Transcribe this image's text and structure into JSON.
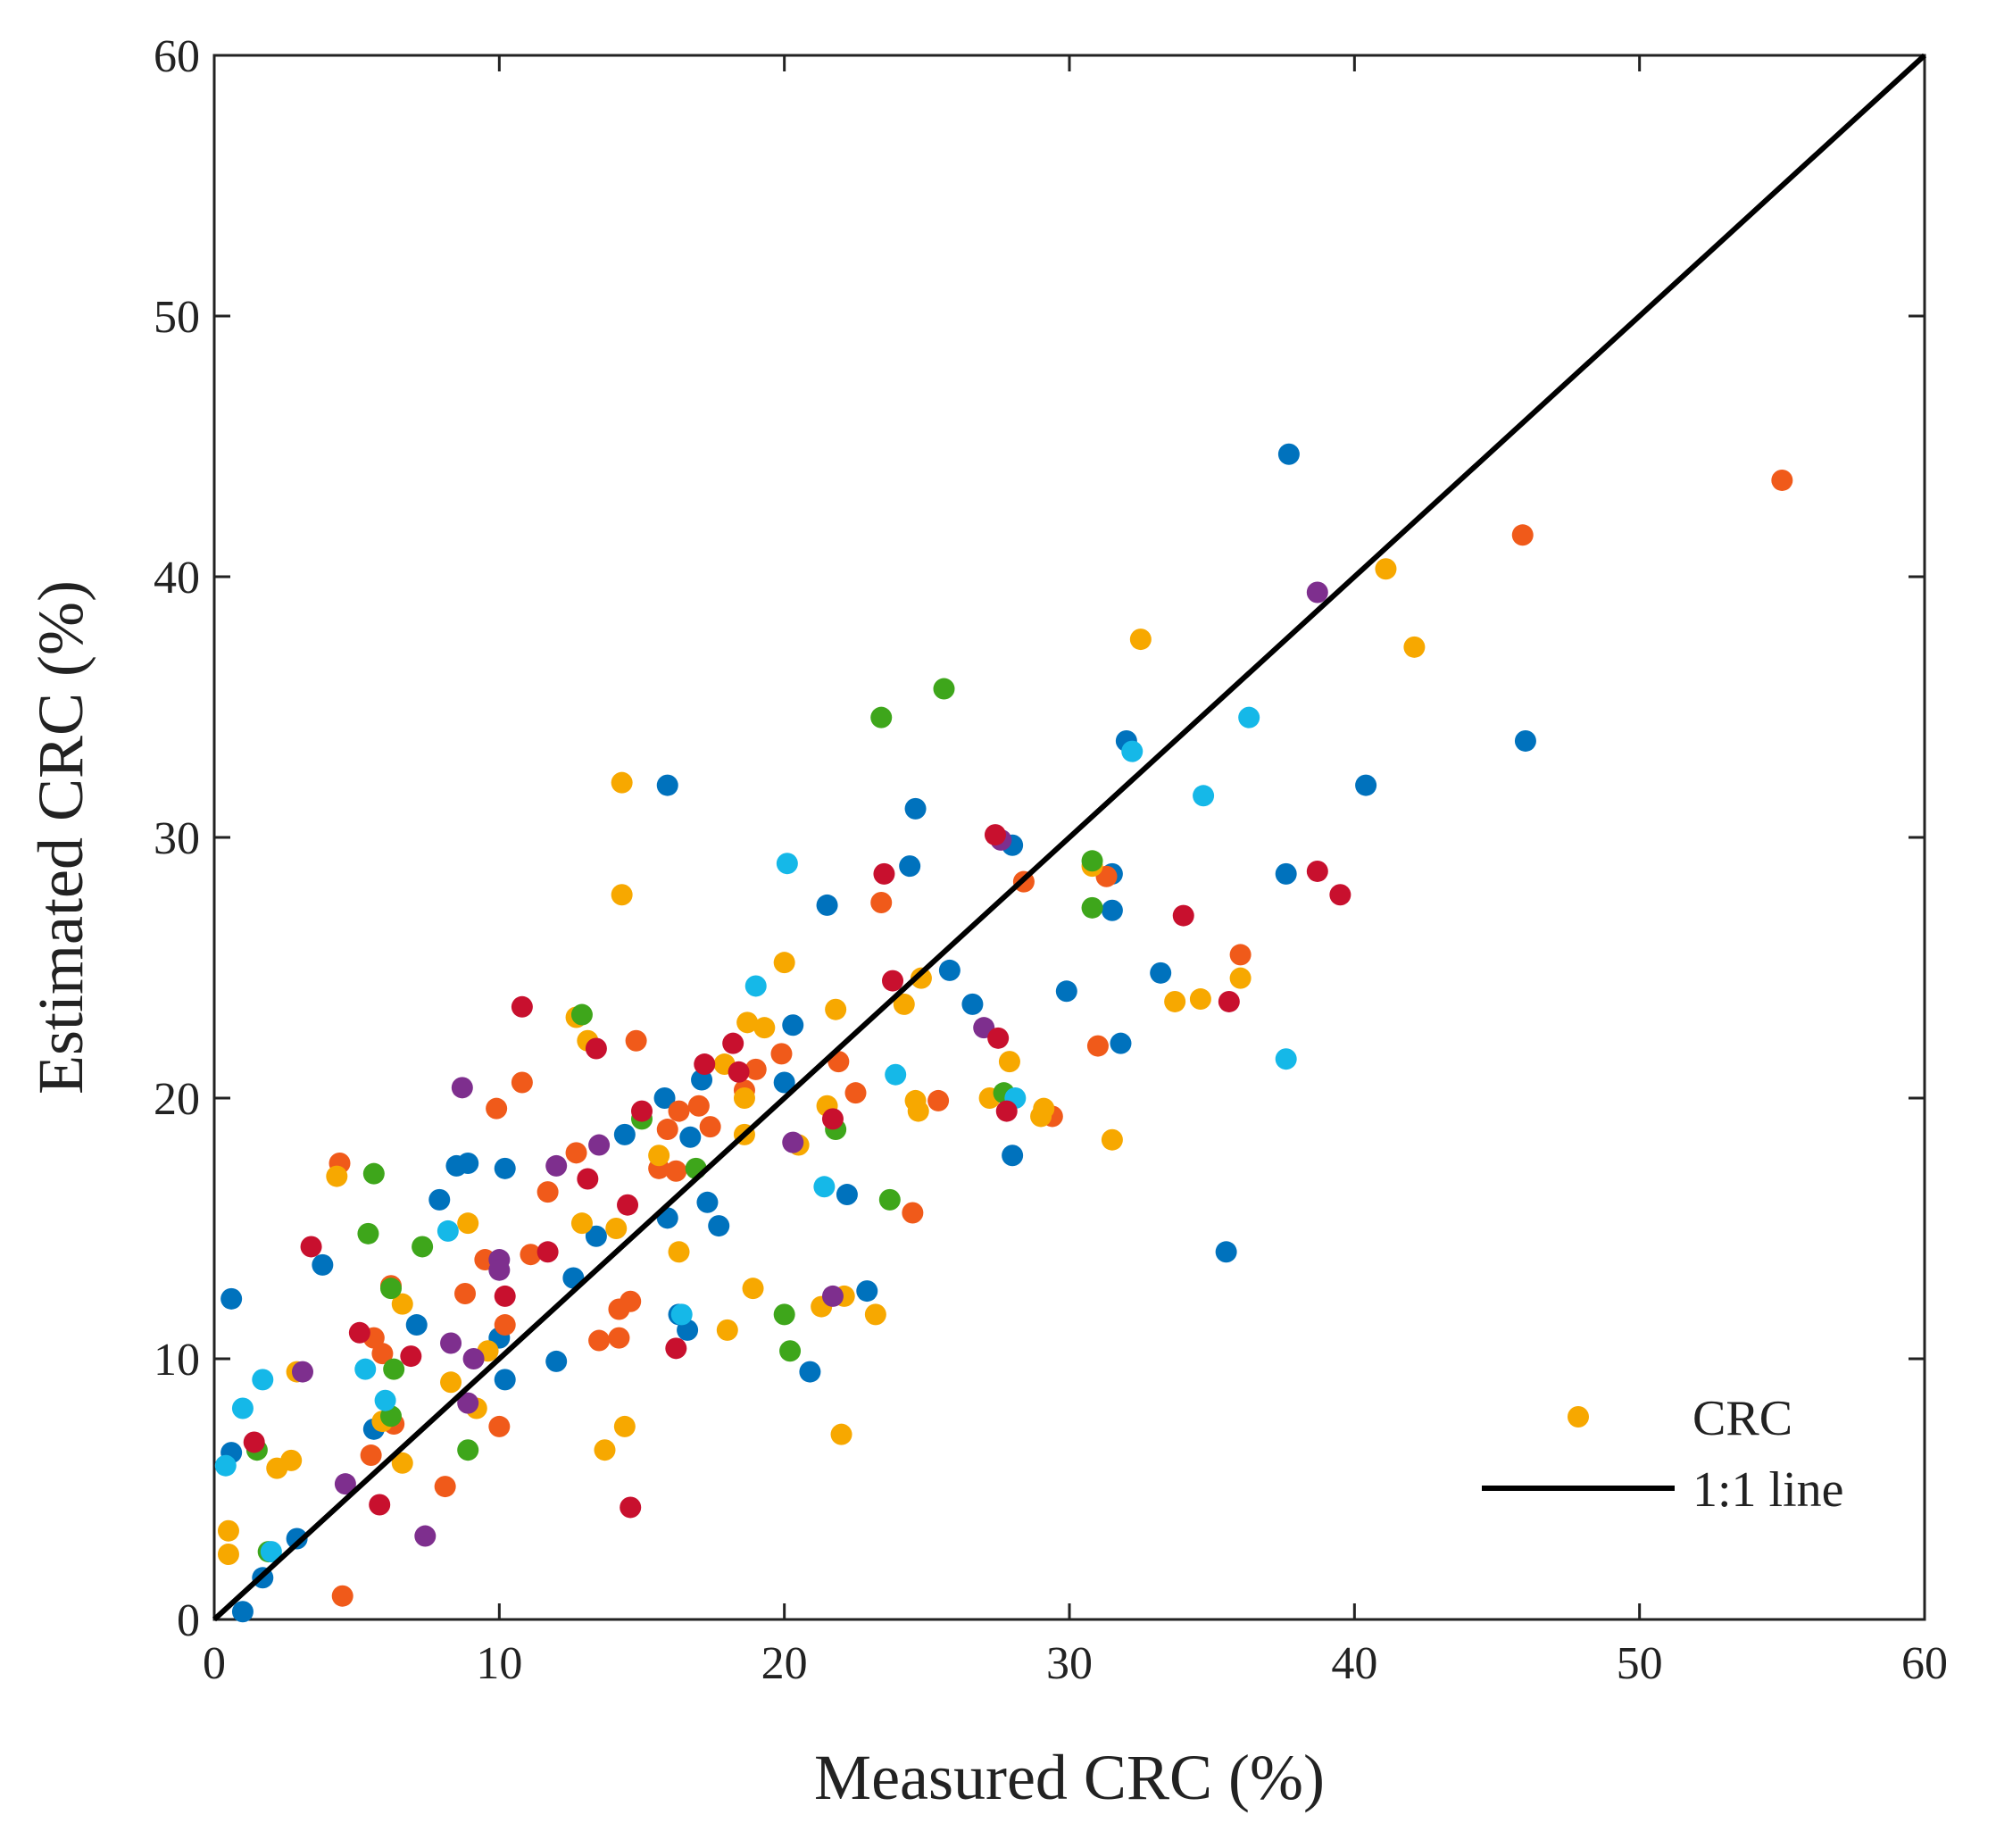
{
  "chart_data": {
    "type": "scatter",
    "title": "",
    "xlabel": "Measured CRC (%)",
    "ylabel": "Estimated CRC (%)",
    "xlim": [
      0,
      60
    ],
    "ylim": [
      0,
      60
    ],
    "xticks": [
      "0",
      "10",
      "20",
      "30",
      "40",
      "50",
      "60"
    ],
    "yticks": [
      "0",
      "10",
      "20",
      "30",
      "40",
      "50",
      "60"
    ],
    "grid": false,
    "legend": {
      "position": "bottom-right",
      "entries": [
        {
          "label": "CRC",
          "kind": "marker",
          "color": "#F7A800"
        },
        {
          "label": "1:1 line",
          "kind": "line",
          "color": "#000000"
        }
      ]
    },
    "reference_line": {
      "name": "1:1 line",
      "from": [
        0,
        0
      ],
      "to": [
        60,
        60
      ],
      "color": "#000000"
    },
    "series": [
      {
        "name": "blue",
        "color": "#0072BD",
        "points": [
          [
            0.6,
            12.3
          ],
          [
            0.6,
            6.4
          ],
          [
            1.0,
            0.3
          ],
          [
            1.7,
            1.6
          ],
          [
            2.9,
            3.1
          ],
          [
            3.8,
            13.6
          ],
          [
            5.6,
            7.3
          ],
          [
            7.1,
            11.3
          ],
          [
            7.9,
            16.1
          ],
          [
            8.5,
            17.4
          ],
          [
            8.9,
            17.5
          ],
          [
            10.2,
            17.3
          ],
          [
            10.2,
            9.2
          ],
          [
            10.0,
            10.8
          ],
          [
            12.0,
            9.9
          ],
          [
            12.6,
            13.1
          ],
          [
            13.4,
            14.7
          ],
          [
            14.4,
            18.6
          ],
          [
            15.8,
            20.0
          ],
          [
            15.9,
            32.0
          ],
          [
            15.9,
            15.4
          ],
          [
            16.3,
            11.7
          ],
          [
            16.6,
            11.1
          ],
          [
            16.7,
            18.5
          ],
          [
            17.1,
            20.7
          ],
          [
            17.3,
            16.0
          ],
          [
            17.7,
            15.1
          ],
          [
            20.0,
            20.6
          ],
          [
            20.3,
            22.8
          ],
          [
            20.9,
            9.5
          ],
          [
            21.5,
            27.4
          ],
          [
            22.2,
            16.3
          ],
          [
            22.9,
            12.6
          ],
          [
            24.4,
            28.9
          ],
          [
            24.6,
            31.1
          ],
          [
            25.8,
            24.9
          ],
          [
            26.6,
            23.6
          ],
          [
            28.0,
            29.7
          ],
          [
            28.0,
            17.8
          ],
          [
            29.9,
            24.1
          ],
          [
            31.5,
            28.6
          ],
          [
            31.5,
            27.2
          ],
          [
            31.8,
            22.1
          ],
          [
            32.0,
            33.7
          ],
          [
            33.2,
            24.8
          ],
          [
            35.5,
            14.1
          ],
          [
            37.6,
            28.6
          ],
          [
            37.7,
            44.7
          ],
          [
            40.4,
            32.0
          ],
          [
            46.0,
            33.7
          ]
        ]
      },
      {
        "name": "orange",
        "color": "#F05A1A",
        "points": [
          [
            4.4,
            17.5
          ],
          [
            4.5,
            0.9
          ],
          [
            5.6,
            10.8
          ],
          [
            5.9,
            10.2
          ],
          [
            6.2,
            12.8
          ],
          [
            6.3,
            7.5
          ],
          [
            5.5,
            6.3
          ],
          [
            8.1,
            5.1
          ],
          [
            8.8,
            12.5
          ],
          [
            9.5,
            13.8
          ],
          [
            9.9,
            19.6
          ],
          [
            10.0,
            7.4
          ],
          [
            10.2,
            11.3
          ],
          [
            10.8,
            20.6
          ],
          [
            11.1,
            14.0
          ],
          [
            11.7,
            16.4
          ],
          [
            12.7,
            17.9
          ],
          [
            13.5,
            10.7
          ],
          [
            14.2,
            10.8
          ],
          [
            14.2,
            11.9
          ],
          [
            14.6,
            12.2
          ],
          [
            14.8,
            22.2
          ],
          [
            15.6,
            17.3
          ],
          [
            15.9,
            18.8
          ],
          [
            16.2,
            17.2
          ],
          [
            16.3,
            19.5
          ],
          [
            17.0,
            19.7
          ],
          [
            17.4,
            18.9
          ],
          [
            18.6,
            20.3
          ],
          [
            19.0,
            21.1
          ],
          [
            19.9,
            21.7
          ],
          [
            21.9,
            21.4
          ],
          [
            22.5,
            20.2
          ],
          [
            23.4,
            27.5
          ],
          [
            24.5,
            15.6
          ],
          [
            25.4,
            19.9
          ],
          [
            28.4,
            28.3
          ],
          [
            29.4,
            19.3
          ],
          [
            31.0,
            22.0
          ],
          [
            31.3,
            28.5
          ],
          [
            36.0,
            25.5
          ],
          [
            45.9,
            41.6
          ],
          [
            55.0,
            43.7
          ]
        ]
      },
      {
        "name": "yellow",
        "color": "#F7A800",
        "points": [
          [
            0.5,
            3.4
          ],
          [
            0.5,
            2.5
          ],
          [
            2.2,
            5.8
          ],
          [
            2.7,
            6.1
          ],
          [
            2.9,
            9.5
          ],
          [
            4.3,
            17.0
          ],
          [
            5.9,
            7.6
          ],
          [
            6.6,
            12.1
          ],
          [
            6.6,
            6.0
          ],
          [
            8.3,
            9.1
          ],
          [
            8.9,
            15.2
          ],
          [
            9.2,
            8.1
          ],
          [
            9.6,
            10.3
          ],
          [
            12.7,
            23.1
          ],
          [
            12.9,
            15.2
          ],
          [
            13.1,
            22.2
          ],
          [
            13.7,
            6.5
          ],
          [
            14.1,
            15.0
          ],
          [
            14.3,
            32.1
          ],
          [
            14.3,
            27.8
          ],
          [
            14.4,
            7.4
          ],
          [
            15.6,
            17.8
          ],
          [
            16.3,
            14.1
          ],
          [
            17.9,
            21.3
          ],
          [
            18.0,
            11.1
          ],
          [
            18.6,
            20.0
          ],
          [
            18.6,
            18.6
          ],
          [
            18.7,
            22.9
          ],
          [
            18.9,
            12.7
          ],
          [
            19.3,
            22.7
          ],
          [
            20.0,
            25.2
          ],
          [
            20.5,
            18.2
          ],
          [
            21.3,
            12.0
          ],
          [
            21.5,
            19.7
          ],
          [
            21.8,
            23.4
          ],
          [
            22.0,
            7.1
          ],
          [
            22.1,
            12.4
          ],
          [
            23.2,
            11.7
          ],
          [
            24.2,
            23.6
          ],
          [
            24.6,
            19.9
          ],
          [
            24.7,
            19.5
          ],
          [
            24.8,
            24.6
          ],
          [
            27.2,
            20.0
          ],
          [
            27.9,
            21.4
          ],
          [
            29.0,
            19.3
          ],
          [
            29.1,
            19.6
          ],
          [
            30.8,
            28.9
          ],
          [
            31.5,
            18.4
          ],
          [
            32.5,
            37.6
          ],
          [
            33.7,
            23.7
          ],
          [
            34.6,
            23.8
          ],
          [
            36.0,
            24.6
          ],
          [
            41.1,
            40.3
          ],
          [
            42.1,
            37.3
          ]
        ]
      },
      {
        "name": "purple",
        "color": "#7E2F8E",
        "points": [
          [
            3.1,
            9.5
          ],
          [
            4.6,
            5.2
          ],
          [
            7.4,
            3.2
          ],
          [
            8.3,
            10.6
          ],
          [
            8.7,
            20.4
          ],
          [
            8.9,
            8.3
          ],
          [
            9.1,
            10.0
          ],
          [
            10.0,
            13.8
          ],
          [
            10.0,
            13.4
          ],
          [
            12.0,
            17.4
          ],
          [
            13.5,
            18.2
          ],
          [
            20.3,
            18.3
          ],
          [
            21.7,
            12.4
          ],
          [
            27.0,
            22.7
          ],
          [
            27.6,
            29.9
          ],
          [
            38.7,
            39.4
          ]
        ]
      },
      {
        "name": "green",
        "color": "#3EA61B",
        "points": [
          [
            1.5,
            6.5
          ],
          [
            1.9,
            2.6
          ],
          [
            5.4,
            14.8
          ],
          [
            5.6,
            17.1
          ],
          [
            6.2,
            12.7
          ],
          [
            6.3,
            9.6
          ],
          [
            6.2,
            7.8
          ],
          [
            7.3,
            14.3
          ],
          [
            8.9,
            6.5
          ],
          [
            12.9,
            23.2
          ],
          [
            15.0,
            19.2
          ],
          [
            16.9,
            17.3
          ],
          [
            20.0,
            11.7
          ],
          [
            20.2,
            10.3
          ],
          [
            21.8,
            18.8
          ],
          [
            23.4,
            34.6
          ],
          [
            23.7,
            16.1
          ],
          [
            25.6,
            35.7
          ],
          [
            27.7,
            20.2
          ],
          [
            30.8,
            29.1
          ],
          [
            30.8,
            27.3
          ]
        ]
      },
      {
        "name": "cyan",
        "color": "#15B8E8",
        "points": [
          [
            0.4,
            5.9
          ],
          [
            1.0,
            8.1
          ],
          [
            1.7,
            9.2
          ],
          [
            2.0,
            2.6
          ],
          [
            5.3,
            9.6
          ],
          [
            6.0,
            8.4
          ],
          [
            8.2,
            14.9
          ],
          [
            16.4,
            11.7
          ],
          [
            19.0,
            24.3
          ],
          [
            20.1,
            29.0
          ],
          [
            21.4,
            16.6
          ],
          [
            23.9,
            20.9
          ],
          [
            28.1,
            20.0
          ],
          [
            32.2,
            33.3
          ],
          [
            34.7,
            31.6
          ],
          [
            36.3,
            34.6
          ],
          [
            37.6,
            21.5
          ]
        ]
      },
      {
        "name": "crimson",
        "color": "#C8102E",
        "points": [
          [
            1.4,
            6.8
          ],
          [
            3.4,
            14.3
          ],
          [
            5.1,
            11.0
          ],
          [
            5.8,
            4.4
          ],
          [
            6.9,
            10.1
          ],
          [
            10.2,
            12.4
          ],
          [
            10.8,
            23.5
          ],
          [
            11.7,
            14.1
          ],
          [
            13.1,
            16.9
          ],
          [
            13.4,
            21.9
          ],
          [
            14.6,
            4.3
          ],
          [
            14.5,
            15.9
          ],
          [
            15.0,
            19.5
          ],
          [
            16.2,
            10.4
          ],
          [
            17.2,
            21.3
          ],
          [
            18.2,
            22.1
          ],
          [
            18.4,
            21.0
          ],
          [
            21.7,
            19.2
          ],
          [
            23.5,
            28.6
          ],
          [
            23.8,
            24.5
          ],
          [
            27.4,
            30.1
          ],
          [
            27.5,
            22.3
          ],
          [
            27.8,
            19.5
          ],
          [
            34.0,
            27.0
          ],
          [
            35.6,
            23.7
          ],
          [
            38.7,
            28.7
          ],
          [
            39.5,
            27.8
          ]
        ]
      }
    ]
  }
}
